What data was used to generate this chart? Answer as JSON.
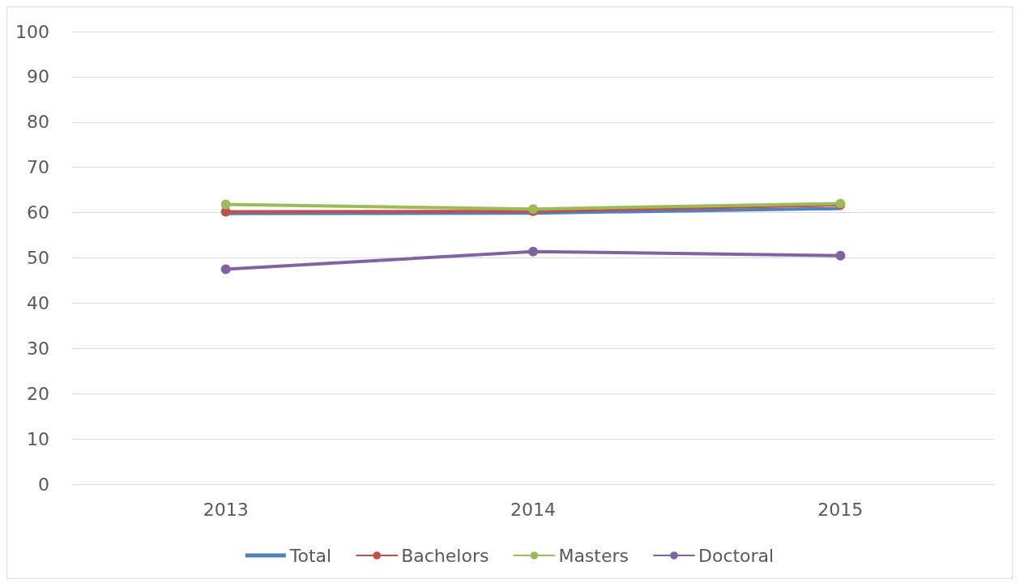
{
  "chart_data": {
    "type": "line",
    "categories": [
      "2013",
      "2014",
      "2015"
    ],
    "series": [
      {
        "name": "Total",
        "color": "#4f81bd",
        "marker": "none",
        "values": [
          59.8,
          59.9,
          60.9
        ]
      },
      {
        "name": "Bachelors",
        "color": "#c0504d",
        "marker": "circle",
        "values": [
          60.2,
          60.3,
          61.7
        ]
      },
      {
        "name": "Masters",
        "color": "#9bbb59",
        "marker": "circle",
        "values": [
          61.8,
          60.8,
          62.0
        ]
      },
      {
        "name": "Doctoral",
        "color": "#8064a2",
        "marker": "circle",
        "values": [
          47.5,
          51.4,
          50.5
        ]
      }
    ],
    "ylim": [
      0,
      100
    ],
    "yticks": [
      0,
      10,
      20,
      30,
      40,
      50,
      60,
      70,
      80,
      90,
      100
    ],
    "grid": "y",
    "legend": "bottom",
    "line_style": "solid"
  }
}
